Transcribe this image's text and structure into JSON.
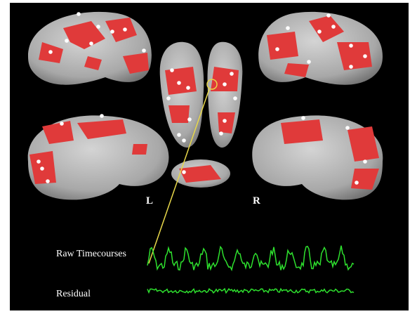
{
  "labels": {
    "left": "L",
    "right": "R"
  },
  "traces": {
    "raw": "Raw Timecourses",
    "residual": "Residual"
  }
}
